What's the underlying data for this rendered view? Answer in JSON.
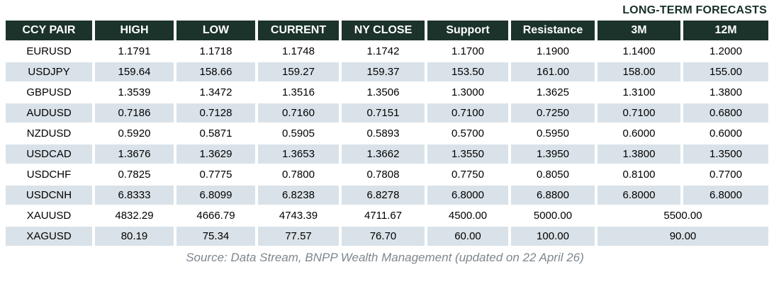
{
  "title": "LONG-TERM FORECASTS",
  "footer": "Source: Data Stream, BNPP Wealth Management (updated on 22 April 26)",
  "colors": {
    "header_bg": "#1c332c",
    "header_text": "#ffffff",
    "row_alt_bg": "#d9e2e8",
    "title_text": "#17302a",
    "footer_text": "#7d878e",
    "body_text": "#000000"
  },
  "chart_data": {
    "type": "table",
    "title": "LONG-TERM FORECASTS",
    "columns": [
      "CCY PAIR",
      "HIGH",
      "LOW",
      "CURRENT",
      "NY CLOSE",
      "Support",
      "Resistance",
      "3M",
      "12M"
    ],
    "rows": [
      {
        "cells": [
          "EURUSD",
          "1.1791",
          "1.1718",
          "1.1748",
          "1.1742",
          "1.1700",
          "1.1900",
          "1.1400",
          "1.2000"
        ],
        "merged_3m_12m": false
      },
      {
        "cells": [
          "USDJPY",
          "159.64",
          "158.66",
          "159.27",
          "159.37",
          "153.50",
          "161.00",
          "158.00",
          "155.00"
        ],
        "merged_3m_12m": false
      },
      {
        "cells": [
          "GBPUSD",
          "1.3539",
          "1.3472",
          "1.3516",
          "1.3506",
          "1.3000",
          "1.3625",
          "1.3100",
          "1.3800"
        ],
        "merged_3m_12m": false
      },
      {
        "cells": [
          "AUDUSD",
          "0.7186",
          "0.7128",
          "0.7160",
          "0.7151",
          "0.7100",
          "0.7250",
          "0.7100",
          "0.6800"
        ],
        "merged_3m_12m": false
      },
      {
        "cells": [
          "NZDUSD",
          "0.5920",
          "0.5871",
          "0.5905",
          "0.5893",
          "0.5700",
          "0.5950",
          "0.6000",
          "0.6000"
        ],
        "merged_3m_12m": false
      },
      {
        "cells": [
          "USDCAD",
          "1.3676",
          "1.3629",
          "1.3653",
          "1.3662",
          "1.3550",
          "1.3950",
          "1.3800",
          "1.3500"
        ],
        "merged_3m_12m": false
      },
      {
        "cells": [
          "USDCHF",
          "0.7825",
          "0.7775",
          "0.7800",
          "0.7808",
          "0.7750",
          "0.8050",
          "0.8100",
          "0.7700"
        ],
        "merged_3m_12m": false
      },
      {
        "cells": [
          "USDCNH",
          "6.8333",
          "6.8099",
          "6.8238",
          "6.8278",
          "6.8000",
          "6.8800",
          "6.8000",
          "6.8000"
        ],
        "merged_3m_12m": false
      },
      {
        "cells": [
          "XAUUSD",
          "4832.29",
          "4666.79",
          "4743.39",
          "4711.67",
          "4500.00",
          "5000.00",
          "5500.00"
        ],
        "merged_3m_12m": true
      },
      {
        "cells": [
          "XAGUSD",
          "80.19",
          "75.34",
          "77.57",
          "76.70",
          "60.00",
          "100.00",
          "90.00"
        ],
        "merged_3m_12m": true
      }
    ],
    "layout_hints": {
      "header_style": "dark-green bg, white bold text",
      "alternating_rows": "white / pale blue-gray",
      "merged_note": "XAUUSD and XAGUSD rows merge the 3M and 12M columns into one centered value"
    }
  }
}
